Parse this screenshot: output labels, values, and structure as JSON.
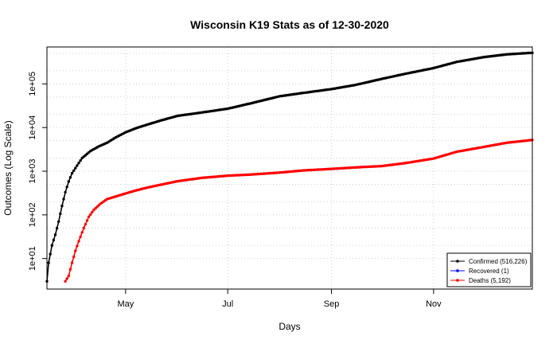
{
  "chart_data": {
    "type": "line",
    "title": "Wisconsin K19 Stats as of 12-30-2020",
    "xlabel": "Days",
    "ylabel": "Outcomes (Log Scale)",
    "y_scale": "log",
    "ylim": [
      2,
      700000
    ],
    "x_range": [
      "2020-03-15",
      "2020-12-30"
    ],
    "x_ticks": [
      {
        "date": "2020-05-01",
        "label": "May"
      },
      {
        "date": "2020-07-01",
        "label": "Jul"
      },
      {
        "date": "2020-09-01",
        "label": "Sep"
      },
      {
        "date": "2020-11-01",
        "label": "Nov"
      }
    ],
    "y_ticks": [
      {
        "value": 10,
        "label": "1e+01"
      },
      {
        "value": 100,
        "label": "1e+02"
      },
      {
        "value": 1000,
        "label": "1e+03"
      },
      {
        "value": 10000,
        "label": "1e+04"
      },
      {
        "value": 100000,
        "label": "1e+05"
      }
    ],
    "grid": true,
    "legend_position": "bottom-right",
    "series": [
      {
        "name": "Confirmed (516,226)",
        "color": "#000000",
        "points": [
          [
            "2020-03-15",
            3
          ],
          [
            "2020-03-16",
            8
          ],
          [
            "2020-03-18",
            20
          ],
          [
            "2020-03-20",
            35
          ],
          [
            "2020-03-22",
            70
          ],
          [
            "2020-03-24",
            160
          ],
          [
            "2020-03-26",
            330
          ],
          [
            "2020-03-28",
            580
          ],
          [
            "2020-03-30",
            900
          ],
          [
            "2020-04-02",
            1350
          ],
          [
            "2020-04-05",
            2000
          ],
          [
            "2020-04-10",
            2900
          ],
          [
            "2020-04-15",
            3700
          ],
          [
            "2020-04-20",
            4500
          ],
          [
            "2020-04-25",
            5900
          ],
          [
            "2020-05-01",
            7800
          ],
          [
            "2020-05-08",
            9900
          ],
          [
            "2020-05-15",
            12000
          ],
          [
            "2020-05-22",
            14500
          ],
          [
            "2020-06-01",
            18500
          ],
          [
            "2020-06-15",
            22000
          ],
          [
            "2020-07-01",
            27000
          ],
          [
            "2020-07-15",
            36000
          ],
          [
            "2020-08-01",
            52000
          ],
          [
            "2020-08-15",
            62000
          ],
          [
            "2020-09-01",
            76000
          ],
          [
            "2020-09-15",
            94000
          ],
          [
            "2020-10-01",
            130000
          ],
          [
            "2020-10-15",
            170000
          ],
          [
            "2020-11-01",
            230000
          ],
          [
            "2020-11-15",
            320000
          ],
          [
            "2020-12-01",
            410000
          ],
          [
            "2020-12-15",
            475000
          ],
          [
            "2020-12-30",
            516226
          ]
        ]
      },
      {
        "name": "Recovered (1)",
        "color": "#0000ff",
        "points": []
      },
      {
        "name": "Deaths (5,192)",
        "color": "#ff0000",
        "points": [
          [
            "2020-03-26",
            3
          ],
          [
            "2020-03-28",
            4
          ],
          [
            "2020-03-30",
            8
          ],
          [
            "2020-04-01",
            15
          ],
          [
            "2020-04-03",
            25
          ],
          [
            "2020-04-06",
            50
          ],
          [
            "2020-04-09",
            90
          ],
          [
            "2020-04-12",
            130
          ],
          [
            "2020-04-16",
            180
          ],
          [
            "2020-04-20",
            230
          ],
          [
            "2020-04-26",
            270
          ],
          [
            "2020-05-01",
            310
          ],
          [
            "2020-05-08",
            370
          ],
          [
            "2020-05-15",
            430
          ],
          [
            "2020-05-22",
            490
          ],
          [
            "2020-06-01",
            590
          ],
          [
            "2020-06-15",
            700
          ],
          [
            "2020-07-01",
            790
          ],
          [
            "2020-07-15",
            840
          ],
          [
            "2020-08-01",
            930
          ],
          [
            "2020-08-15",
            1040
          ],
          [
            "2020-09-01",
            1130
          ],
          [
            "2020-09-15",
            1220
          ],
          [
            "2020-10-01",
            1310
          ],
          [
            "2020-10-15",
            1530
          ],
          [
            "2020-11-01",
            1950
          ],
          [
            "2020-11-15",
            2800
          ],
          [
            "2020-12-01",
            3600
          ],
          [
            "2020-12-15",
            4500
          ],
          [
            "2020-12-30",
            5192
          ]
        ]
      }
    ]
  }
}
